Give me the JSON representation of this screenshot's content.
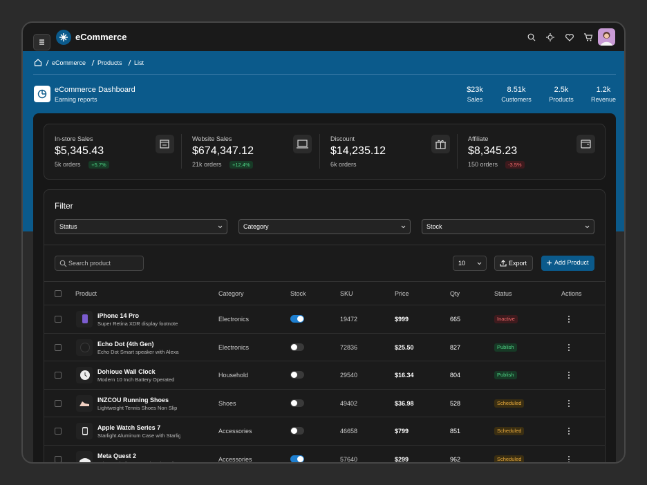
{
  "header": {
    "brand": "eCommerce"
  },
  "breadcrumb": [
    "eCommerce",
    "Products",
    "List"
  ],
  "dashboard": {
    "title": "eCommerce Dashboard",
    "subtitle": "Earning reports",
    "stats": [
      {
        "value": "$23k",
        "label": "Sales"
      },
      {
        "value": "8.51k",
        "label": "Customers"
      },
      {
        "value": "2.5k",
        "label": "Products"
      },
      {
        "value": "1.2k",
        "label": "Revenue"
      }
    ]
  },
  "summary": [
    {
      "label": "In-store Sales",
      "value": "$5,345.43",
      "orders": "5k orders",
      "change": "+5.7%",
      "trend": "up"
    },
    {
      "label": "Website Sales",
      "value": "$674,347.12",
      "orders": "21k orders",
      "change": "+12.4%",
      "trend": "up"
    },
    {
      "label": "Discount",
      "value": "$14,235.12",
      "orders": "6k orders"
    },
    {
      "label": "Affiliate",
      "value": "$8,345.23",
      "orders": "150 orders",
      "change": "-3.5%",
      "trend": "down"
    }
  ],
  "filter": {
    "title": "Filter",
    "selects": [
      "Status",
      "Category",
      "Stock"
    ]
  },
  "toolbar": {
    "search_placeholder": "Search product",
    "page_size": "10",
    "export": "Export",
    "add": "Add Product"
  },
  "table": {
    "columns": [
      "Product",
      "Category",
      "Stock",
      "SKU",
      "Price",
      "Qty",
      "Status",
      "Actions"
    ],
    "rows": [
      {
        "name": "iPhone 14 Pro",
        "description": "Super Retina XDR display footnote",
        "category": "Electronics",
        "stock": true,
        "sku": "19472",
        "price": "$999",
        "qty": "665",
        "status": "Inactive"
      },
      {
        "name": "Echo Dot (4th Gen)",
        "description": "Echo Dot Smart speaker with Alexa",
        "category": "Electronics",
        "stock": false,
        "sku": "72836",
        "price": "$25.50",
        "qty": "827",
        "status": "Publish"
      },
      {
        "name": "Dohioue Wall Clock",
        "description": "Modern 10 Inch Battery Operated",
        "category": "Household",
        "stock": false,
        "sku": "29540",
        "price": "$16.34",
        "qty": "804",
        "status": "Publish"
      },
      {
        "name": "INZCOU Running Shoes",
        "description": "Lightweight Tennis Shoes Non Slip",
        "category": "Shoes",
        "stock": false,
        "sku": "49402",
        "price": "$36.98",
        "qty": "528",
        "status": "Scheduled"
      },
      {
        "name": "Apple Watch Series 7",
        "description": "Starlight Aluminum Case with Starlight",
        "category": "Accessories",
        "stock": false,
        "sku": "46658",
        "price": "$799",
        "qty": "851",
        "status": "Scheduled"
      },
      {
        "name": "Meta Quest 2",
        "description": "Advanced All-In-One Virtual Reality",
        "category": "Accessories",
        "stock": true,
        "sku": "57640",
        "price": "$299",
        "qty": "962",
        "status": "Scheduled"
      }
    ]
  }
}
